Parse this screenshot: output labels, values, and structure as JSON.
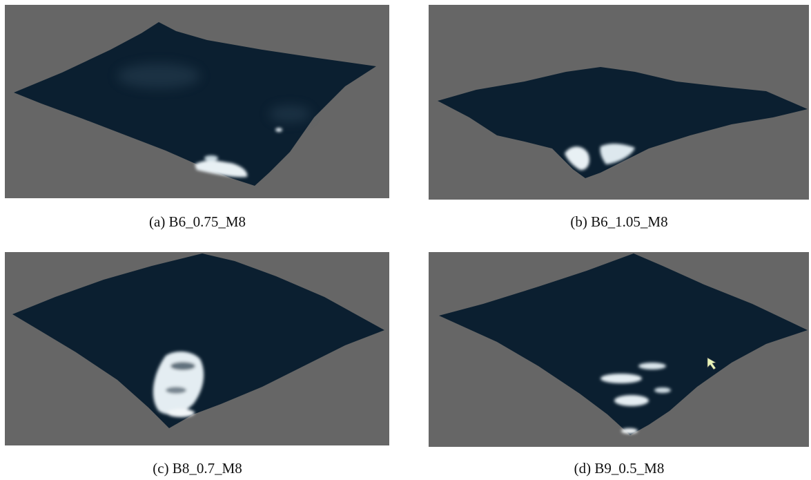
{
  "figure": {
    "panels": [
      {
        "caption": "(a) B6_0.75_M8"
      },
      {
        "caption": "(b) B6_1.05_M8"
      },
      {
        "caption": "(c) B8_0.7_M8"
      },
      {
        "caption": "(d) B9_0.5_M8"
      }
    ]
  }
}
